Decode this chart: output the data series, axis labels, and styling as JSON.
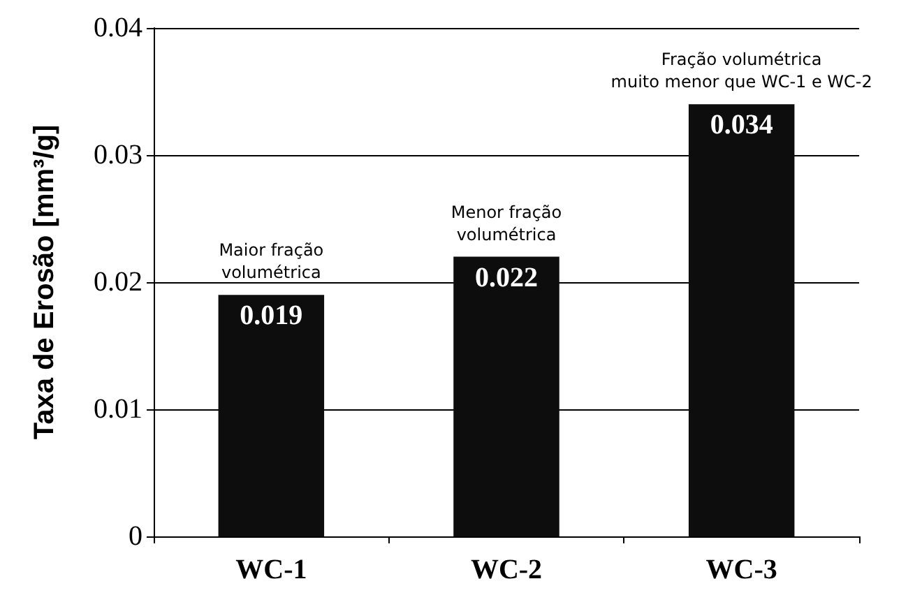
{
  "chart_data": {
    "type": "bar",
    "ylabel": "Taxa de Erosão [mm³/g]",
    "categories": [
      "WC-1",
      "WC-2",
      "WC-3"
    ],
    "values": [
      0.019,
      0.022,
      0.034
    ],
    "color": "#0d0d0d",
    "ylim": [
      0,
      0.04
    ],
    "yticks": [
      0,
      0.01,
      0.02,
      0.03,
      0.04
    ],
    "grid": "y",
    "data_labels": true,
    "annotations": [
      {
        "text": "Maior fração\nvolumétrica",
        "x": "WC-1",
        "y": 0.019
      },
      {
        "text": "Menor fração\nvolumétrica",
        "x": "WC-2",
        "y": 0.022
      },
      {
        "text": "Fração volumétrica\nmuito menor que WC-1 e WC-2",
        "x": "WC-3",
        "y": 0.034
      }
    ]
  }
}
